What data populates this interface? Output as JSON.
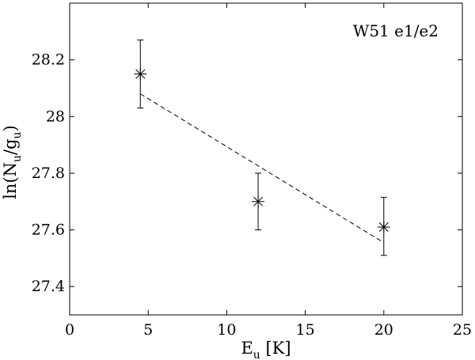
{
  "chart_data": {
    "type": "scatter",
    "annotation": "W51 e1/e2",
    "xlabel": {
      "main": "E",
      "sub": "u",
      "unit": " [K]"
    },
    "ylabel": {
      "prefix": "ln(N",
      "sub1": "u",
      "mid": "/g",
      "sub2": "u",
      "suffix": ")"
    },
    "xlim": [
      0,
      25
    ],
    "ylim": [
      27.3,
      28.4
    ],
    "xticks": [
      0,
      5,
      10,
      15,
      20,
      25
    ],
    "xtick_labels": [
      "0",
      "5",
      "10",
      "15",
      "20",
      "25"
    ],
    "yticks": [
      27.4,
      27.6,
      27.8,
      28.0,
      28.2
    ],
    "ytick_labels": [
      "27.4",
      "27.6",
      "27.8",
      "28",
      "28.2"
    ],
    "grid": false,
    "series": [
      {
        "marker": "asterisk",
        "x": [
          4.5,
          12.0,
          20.0
        ],
        "y": [
          28.15,
          27.7,
          27.61
        ],
        "yerr_low": [
          28.03,
          27.6,
          27.51
        ],
        "yerr_high": [
          28.27,
          27.8,
          27.715
        ]
      }
    ],
    "fit_line": {
      "style": "dashed",
      "x": [
        4.5,
        20.0
      ],
      "y": [
        28.08,
        27.555
      ]
    }
  }
}
